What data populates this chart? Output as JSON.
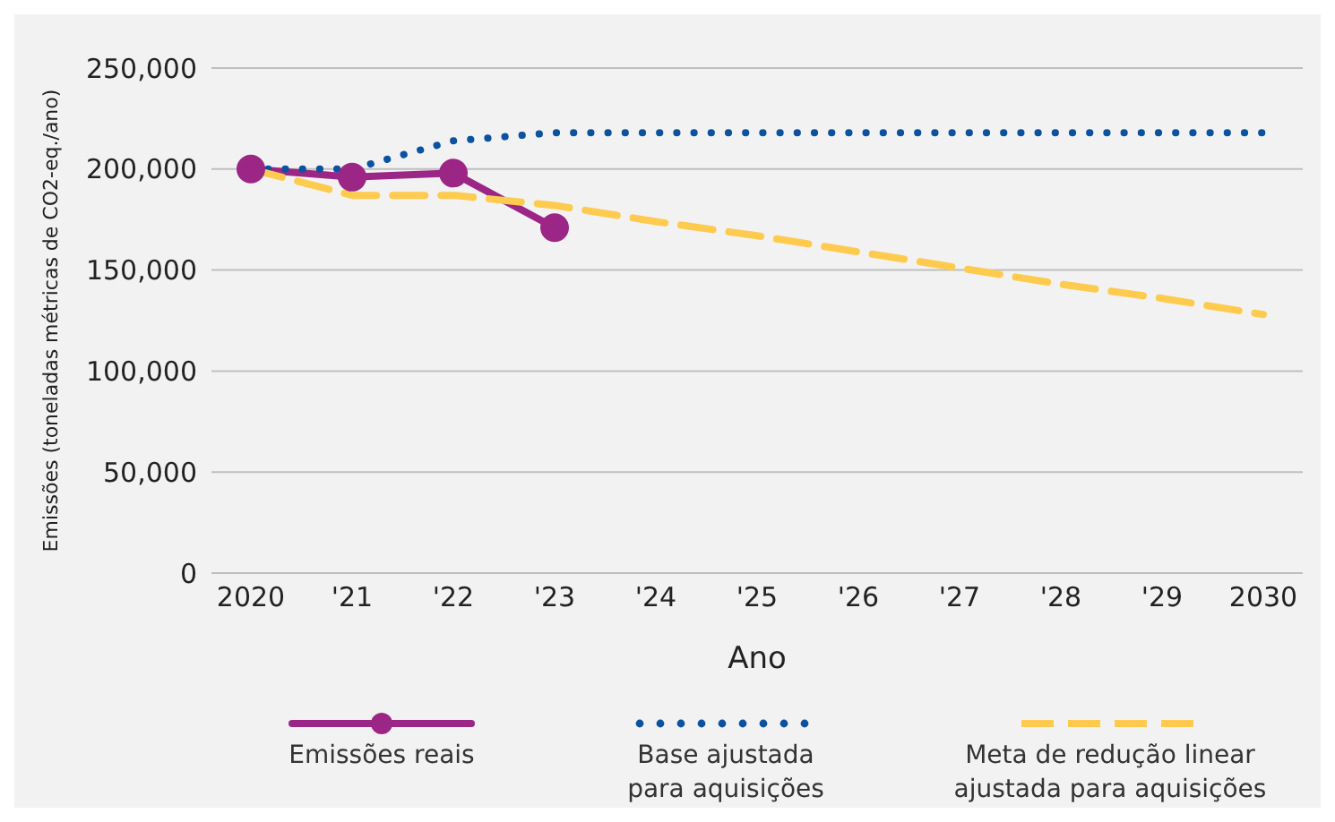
{
  "chart_data": {
    "type": "line",
    "xlabel": "Ano",
    "ylabel": "Emissões (toneladas métricas de CO2-eq./ano)",
    "categories": [
      "2020",
      "'21",
      "'22",
      "'23",
      "'24",
      "'25",
      "'26",
      "'27",
      "'28",
      "'29",
      "2030"
    ],
    "series": [
      {
        "name": "Emissões reais",
        "color": "#9b2686",
        "values": [
          200000,
          196000,
          198000,
          171000,
          null,
          null,
          null,
          null,
          null,
          null,
          null
        ],
        "line_style": "solid",
        "marker": "circle"
      },
      {
        "name": "Base ajustada para aquisições",
        "color": "#0b52a0",
        "values": [
          200000,
          200000,
          214000,
          218000,
          218000,
          218000,
          218000,
          218000,
          218000,
          218000,
          218000
        ],
        "line_style": "dotted",
        "marker": "none"
      },
      {
        "name": "Meta de redução linear ajustada para aquisições",
        "color": "#fecb4f",
        "values": [
          200000,
          187000,
          187000,
          182000,
          174000,
          167000,
          159000,
          151000,
          143000,
          136000,
          128000
        ],
        "line_style": "dashed",
        "marker": "none"
      }
    ],
    "ylim": [
      0,
      250000
    ],
    "yticks": [
      0,
      {
        "value": 50000,
        "label": "50,000"
      },
      {
        "value": 100000,
        "label": "100,000"
      },
      {
        "value": 150000,
        "label": "150,000"
      },
      {
        "value": 200000,
        "label": "200,000"
      },
      {
        "value": 250000,
        "label": "250,000"
      }
    ],
    "grid": "y",
    "legend": "bottom"
  }
}
